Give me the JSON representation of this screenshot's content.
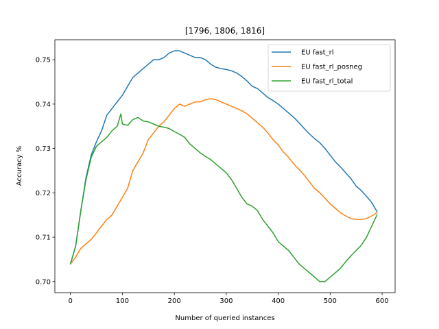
{
  "chart_data": {
    "type": "line",
    "title": "[1796, 1806, 1816]",
    "xlabel": "Number of queried instances",
    "ylabel": "Accuracy %",
    "xlim": [
      -30,
      625
    ],
    "ylim": [
      0.6975,
      0.7545
    ],
    "xticks": [
      0,
      100,
      200,
      300,
      400,
      500,
      600
    ],
    "yticks": [
      0.7,
      0.71,
      0.72,
      0.73,
      0.74,
      0.75
    ],
    "ytick_labels": [
      "0.70",
      "0.71",
      "0.72",
      "0.73",
      "0.74",
      "0.75"
    ],
    "grid": false,
    "legend": "top-right",
    "series": [
      {
        "name": "EU fast_rl",
        "color": "#1f77b4",
        "x": [
          0,
          10,
          20,
          30,
          40,
          50,
          60,
          70,
          80,
          90,
          100,
          110,
          120,
          130,
          140,
          150,
          160,
          170,
          180,
          190,
          200,
          210,
          220,
          230,
          240,
          250,
          260,
          270,
          280,
          290,
          300,
          310,
          320,
          330,
          340,
          350,
          360,
          370,
          380,
          390,
          400,
          410,
          420,
          430,
          440,
          450,
          460,
          470,
          480,
          490,
          500,
          510,
          520,
          530,
          540,
          550,
          560,
          570,
          580,
          590
        ],
        "values": [
          0.704,
          0.708,
          0.716,
          0.7235,
          0.7285,
          0.7315,
          0.734,
          0.7375,
          0.739,
          0.7405,
          0.742,
          0.744,
          0.746,
          0.747,
          0.748,
          0.749,
          0.75,
          0.75,
          0.7505,
          0.7515,
          0.752,
          0.752,
          0.7515,
          0.751,
          0.7505,
          0.7505,
          0.75,
          0.749,
          0.7483,
          0.748,
          0.7478,
          0.7475,
          0.747,
          0.7462,
          0.7452,
          0.744,
          0.7435,
          0.7425,
          0.7415,
          0.7408,
          0.74,
          0.739,
          0.738,
          0.737,
          0.7358,
          0.7345,
          0.7333,
          0.7322,
          0.7313,
          0.73,
          0.7285,
          0.727,
          0.7258,
          0.7245,
          0.7232,
          0.7215,
          0.7205,
          0.7192,
          0.7178,
          0.7158
        ]
      },
      {
        "name": "EU fast_rl_posneg",
        "color": "#ff7f0e",
        "x": [
          0,
          10,
          20,
          30,
          40,
          50,
          60,
          70,
          80,
          90,
          100,
          110,
          120,
          130,
          140,
          150,
          160,
          170,
          180,
          190,
          200,
          210,
          220,
          230,
          240,
          250,
          260,
          270,
          280,
          290,
          300,
          310,
          320,
          330,
          340,
          350,
          360,
          370,
          380,
          390,
          400,
          410,
          420,
          430,
          440,
          450,
          460,
          470,
          480,
          490,
          500,
          510,
          520,
          530,
          540,
          550,
          560,
          570,
          580,
          590
        ],
        "values": [
          0.704,
          0.7055,
          0.7075,
          0.7085,
          0.7095,
          0.711,
          0.7125,
          0.714,
          0.715,
          0.717,
          0.719,
          0.721,
          0.725,
          0.727,
          0.729,
          0.732,
          0.7335,
          0.735,
          0.736,
          0.7375,
          0.739,
          0.74,
          0.7395,
          0.74,
          0.7405,
          0.7405,
          0.741,
          0.7412,
          0.741,
          0.7405,
          0.74,
          0.7395,
          0.739,
          0.7385,
          0.7378,
          0.7368,
          0.7358,
          0.7348,
          0.7335,
          0.732,
          0.7308,
          0.7292,
          0.728,
          0.7265,
          0.7253,
          0.724,
          0.7225,
          0.721,
          0.72,
          0.7188,
          0.7175,
          0.7165,
          0.7155,
          0.7148,
          0.7142,
          0.714,
          0.714,
          0.7142,
          0.7148,
          0.7155
        ]
      },
      {
        "name": "EU fast_rl_total",
        "color": "#2ca02c",
        "x": [
          0,
          10,
          20,
          30,
          40,
          50,
          60,
          70,
          80,
          90,
          97,
          100,
          110,
          120,
          130,
          140,
          150,
          160,
          170,
          180,
          190,
          200,
          210,
          220,
          230,
          240,
          250,
          260,
          270,
          280,
          290,
          300,
          310,
          320,
          330,
          340,
          350,
          360,
          370,
          380,
          390,
          400,
          410,
          420,
          430,
          440,
          450,
          460,
          470,
          480,
          490,
          500,
          510,
          520,
          530,
          540,
          550,
          560,
          570,
          580,
          590
        ],
        "values": [
          0.704,
          0.708,
          0.716,
          0.723,
          0.728,
          0.7305,
          0.7315,
          0.7325,
          0.734,
          0.735,
          0.7378,
          0.7355,
          0.7352,
          0.7365,
          0.737,
          0.7362,
          0.736,
          0.7355,
          0.735,
          0.7348,
          0.7345,
          0.7338,
          0.7332,
          0.7325,
          0.731,
          0.73,
          0.729,
          0.7282,
          0.7275,
          0.7265,
          0.7255,
          0.7245,
          0.723,
          0.721,
          0.719,
          0.7175,
          0.717,
          0.716,
          0.714,
          0.7125,
          0.711,
          0.709,
          0.708,
          0.707,
          0.7055,
          0.704,
          0.703,
          0.702,
          0.701,
          0.7,
          0.7,
          0.701,
          0.702,
          0.703,
          0.7045,
          0.7058,
          0.707,
          0.7082,
          0.71,
          0.7125,
          0.715
        ]
      }
    ]
  }
}
